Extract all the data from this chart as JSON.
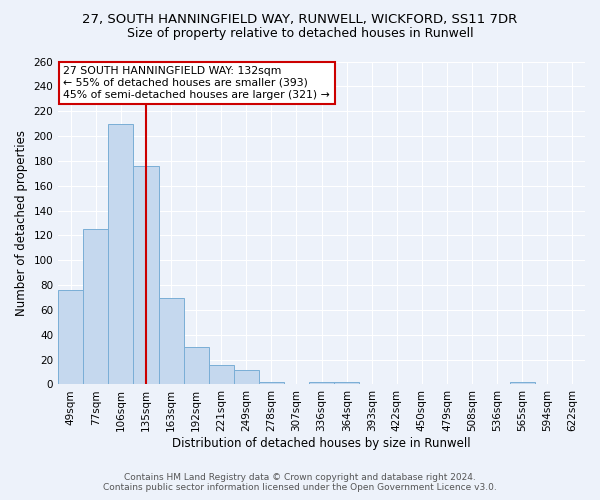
{
  "title1": "27, SOUTH HANNINGFIELD WAY, RUNWELL, WICKFORD, SS11 7DR",
  "title2": "Size of property relative to detached houses in Runwell",
  "xlabel": "Distribution of detached houses by size in Runwell",
  "ylabel": "Number of detached properties",
  "categories": [
    "49sqm",
    "77sqm",
    "106sqm",
    "135sqm",
    "163sqm",
    "192sqm",
    "221sqm",
    "249sqm",
    "278sqm",
    "307sqm",
    "336sqm",
    "364sqm",
    "393sqm",
    "422sqm",
    "450sqm",
    "479sqm",
    "508sqm",
    "536sqm",
    "565sqm",
    "594sqm",
    "622sqm"
  ],
  "values": [
    76,
    125,
    210,
    176,
    70,
    30,
    16,
    12,
    2,
    0,
    2,
    2,
    0,
    0,
    0,
    0,
    0,
    0,
    2,
    0,
    0
  ],
  "bar_color": "#c5d8ee",
  "bar_edge_color": "#7aaed6",
  "vline_x": 3,
  "vline_color": "#cc0000",
  "annotation_text": "27 SOUTH HANNINGFIELD WAY: 132sqm\n← 55% of detached houses are smaller (393)\n45% of semi-detached houses are larger (321) →",
  "annotation_box_color": "white",
  "annotation_box_edge": "#cc0000",
  "ylim": [
    0,
    260
  ],
  "yticks": [
    0,
    20,
    40,
    60,
    80,
    100,
    120,
    140,
    160,
    180,
    200,
    220,
    240,
    260
  ],
  "footer1": "Contains HM Land Registry data © Crown copyright and database right 2024.",
  "footer2": "Contains public sector information licensed under the Open Government Licence v3.0.",
  "bg_color": "#edf2fa",
  "grid_color": "#ffffff",
  "title1_fontsize": 9.5,
  "title2_fontsize": 9,
  "axis_fontsize": 8.5,
  "tick_fontsize": 7.5,
  "footer_fontsize": 6.5
}
